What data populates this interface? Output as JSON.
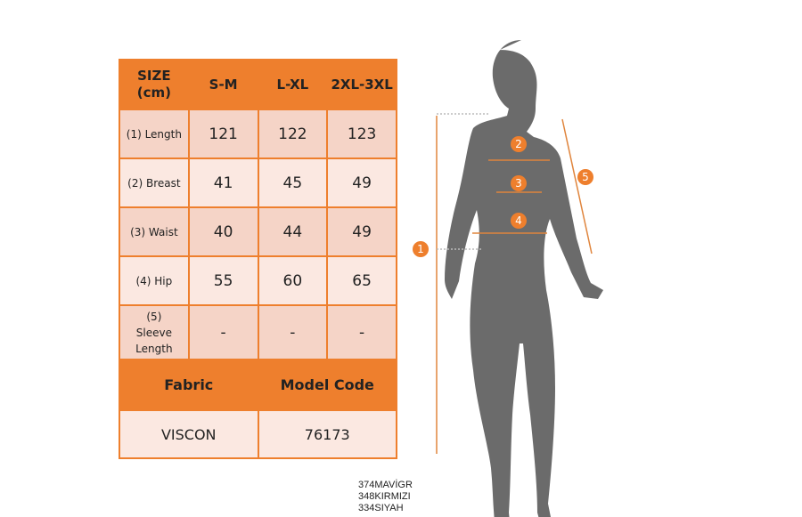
{
  "table": {
    "header": [
      "SIZE (cm)",
      "S-M",
      "L-XL",
      "2XL-3XL"
    ],
    "rows": [
      {
        "label": "(1) Length",
        "values": [
          "121",
          "122",
          "123"
        ]
      },
      {
        "label": "(2) Breast",
        "values": [
          "41",
          "45",
          "49"
        ]
      },
      {
        "label": "(3) Waist",
        "values": [
          "40",
          "44",
          "49"
        ]
      },
      {
        "label": "(4) Hip",
        "values": [
          "55",
          "60",
          "65"
        ]
      },
      {
        "label": "(5) Sleeve Length",
        "values": [
          "-",
          "-",
          "-"
        ]
      }
    ],
    "fabric_label": "Fabric",
    "model_code_label": "Model Code",
    "fabric": "VISCON",
    "model_code": "76173"
  },
  "codes": [
    "374MAVİGR",
    "348KIRMIZI",
    "334SIYAH"
  ],
  "figure": {
    "markers": [
      "1",
      "2",
      "3",
      "4",
      "5"
    ]
  },
  "colors": {
    "accent": "#ee7f2d",
    "silhouette": "#6b6b6b"
  }
}
